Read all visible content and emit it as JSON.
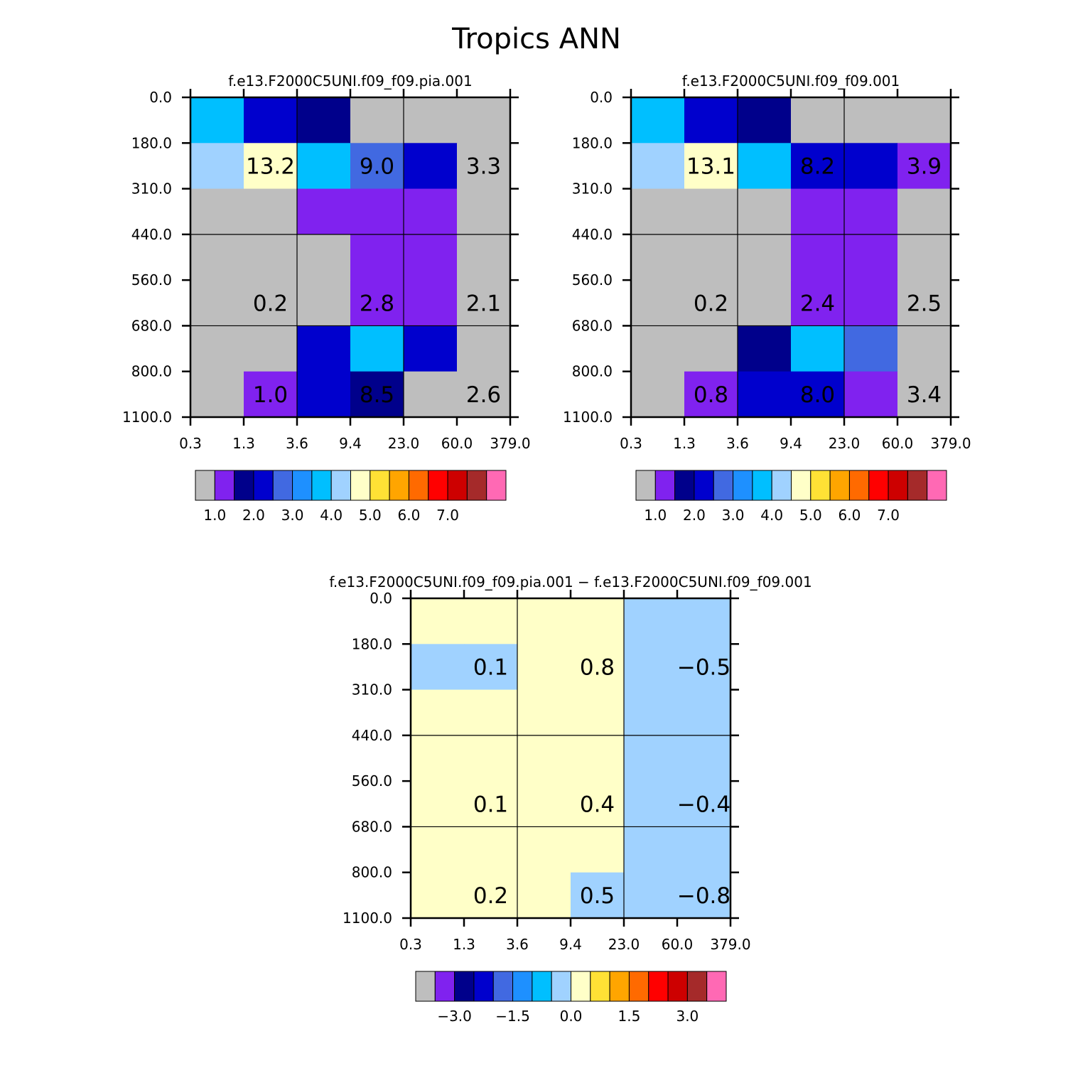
{
  "figure_title": "Tropics ANN",
  "palette": {
    "missing": "#bebebe",
    "levels": [
      "#8022ef",
      "#00008b",
      "#0000cd",
      "#4169e1",
      "#1e90ff",
      "#00bfff",
      "#a0d2ff",
      "#ffffc8",
      "#ffe135",
      "#ffa500",
      "#ff6a00",
      "#ff0000",
      "#cd0000",
      "#a52a2a",
      "#ff69b4"
    ]
  },
  "chart_data": [
    {
      "id": "model",
      "type": "heatmap",
      "title": "f.e13.F2000C5UNI.f09_f09.pia.001",
      "x_ticks": [
        "0.3",
        "1.3",
        "3.6",
        "9.4",
        "23.0",
        "60.0",
        "379.0"
      ],
      "y_ticks": [
        "0.0",
        "180.0",
        "310.0",
        "440.0",
        "560.0",
        "680.0",
        "800.0",
        "1100.0"
      ],
      "cells": [
        [
          5,
          2,
          1,
          -1,
          -1,
          -1
        ],
        [
          6,
          7,
          5,
          3,
          2,
          -1
        ],
        [
          -1,
          -1,
          0,
          0,
          0,
          -1
        ],
        [
          -1,
          -1,
          -1,
          0,
          0,
          -1
        ],
        [
          -1,
          -1,
          -1,
          0,
          0,
          -1
        ],
        [
          -1,
          -1,
          2,
          5,
          2,
          -1
        ],
        [
          -1,
          0,
          2,
          1,
          -1,
          -1
        ]
      ],
      "labels": [
        {
          "row": 1,
          "col": 1,
          "text": "13.2"
        },
        {
          "row": 1,
          "col": 3,
          "text": "9.0"
        },
        {
          "row": 1,
          "col": 5,
          "text": "3.3"
        },
        {
          "row": 4,
          "col": 1,
          "text": "0.2"
        },
        {
          "row": 4,
          "col": 3,
          "text": "2.8"
        },
        {
          "row": 4,
          "col": 5,
          "text": "2.1"
        },
        {
          "row": 6,
          "col": 1,
          "text": "1.0"
        },
        {
          "row": 6,
          "col": 3,
          "text": "8.5"
        },
        {
          "row": 6,
          "col": 5,
          "text": "2.6"
        }
      ],
      "colorbar_labels": [
        "1.0",
        "2.0",
        "3.0",
        "4.0",
        "5.0",
        "6.0",
        "7.0"
      ]
    },
    {
      "id": "control",
      "type": "heatmap",
      "title": "f.e13.F2000C5UNI.f09_f09.001",
      "x_ticks": [
        "0.3",
        "1.3",
        "3.6",
        "9.4",
        "23.0",
        "60.0",
        "379.0"
      ],
      "y_ticks": [
        "0.0",
        "180.0",
        "310.0",
        "440.0",
        "560.0",
        "680.0",
        "800.0",
        "1100.0"
      ],
      "cells": [
        [
          5,
          2,
          1,
          -1,
          -1,
          -1
        ],
        [
          6,
          7,
          5,
          2,
          2,
          0
        ],
        [
          -1,
          -1,
          -1,
          0,
          0,
          -1
        ],
        [
          -1,
          -1,
          -1,
          0,
          0,
          -1
        ],
        [
          -1,
          -1,
          -1,
          0,
          0,
          -1
        ],
        [
          -1,
          -1,
          1,
          5,
          3,
          -1
        ],
        [
          -1,
          0,
          2,
          2,
          0,
          -1
        ]
      ],
      "labels": [
        {
          "row": 1,
          "col": 1,
          "text": "13.1"
        },
        {
          "row": 1,
          "col": 3,
          "text": "8.2"
        },
        {
          "row": 1,
          "col": 5,
          "text": "3.9"
        },
        {
          "row": 4,
          "col": 1,
          "text": "0.2"
        },
        {
          "row": 4,
          "col": 3,
          "text": "2.4"
        },
        {
          "row": 4,
          "col": 5,
          "text": "2.5"
        },
        {
          "row": 6,
          "col": 1,
          "text": "0.8"
        },
        {
          "row": 6,
          "col": 3,
          "text": "8.0"
        },
        {
          "row": 6,
          "col": 5,
          "text": "3.4"
        }
      ],
      "colorbar_labels": [
        "1.0",
        "2.0",
        "3.0",
        "4.0",
        "5.0",
        "6.0",
        "7.0"
      ]
    },
    {
      "id": "difference",
      "type": "heatmap",
      "title": "f.e13.F2000C5UNI.f09_f09.pia.001 − f.e13.F2000C5UNI.f09_f09.001",
      "x_ticks": [
        "0.3",
        "1.3",
        "3.6",
        "9.4",
        "23.0",
        "60.0",
        "379.0"
      ],
      "y_ticks": [
        "0.0",
        "180.0",
        "310.0",
        "440.0",
        "560.0",
        "680.0",
        "800.0",
        "1100.0"
      ],
      "cells": [
        [
          7,
          7,
          7,
          7,
          6,
          6
        ],
        [
          6,
          6,
          7,
          7,
          6,
          6
        ],
        [
          7,
          7,
          7,
          7,
          6,
          6
        ],
        [
          7,
          7,
          7,
          7,
          6,
          6
        ],
        [
          7,
          7,
          7,
          7,
          6,
          6
        ],
        [
          7,
          7,
          7,
          7,
          6,
          6
        ],
        [
          7,
          7,
          7,
          6,
          6,
          6
        ]
      ],
      "labels": [
        {
          "row": 1,
          "col": 1,
          "text": "0.1"
        },
        {
          "row": 1,
          "col": 3,
          "text": "0.8"
        },
        {
          "row": 1,
          "col": 5,
          "text": "−0.5"
        },
        {
          "row": 4,
          "col": 1,
          "text": "0.1"
        },
        {
          "row": 4,
          "col": 3,
          "text": "0.4"
        },
        {
          "row": 4,
          "col": 5,
          "text": "−0.4"
        },
        {
          "row": 6,
          "col": 1,
          "text": "0.2"
        },
        {
          "row": 6,
          "col": 3,
          "text": "0.5"
        },
        {
          "row": 6,
          "col": 5,
          "text": "−0.8"
        }
      ],
      "colorbar_labels": [
        "−3.0",
        "−1.5",
        "0.0",
        "1.5",
        "3.0"
      ]
    }
  ]
}
